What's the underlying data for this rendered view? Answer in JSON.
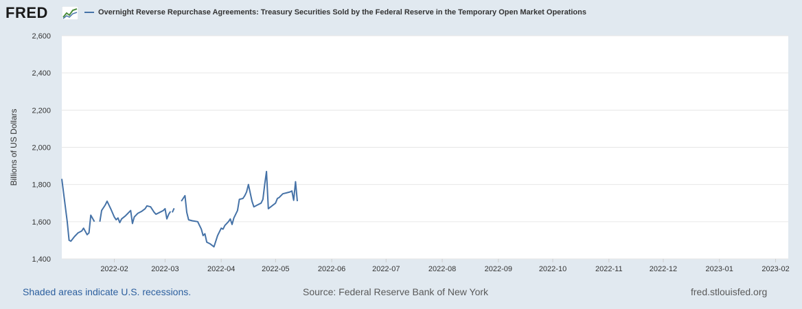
{
  "header": {
    "logo_text": "FRED",
    "logo_icon": "line-chart-icon",
    "series_title": "Overnight Reverse Repurchase Agreements: Treasury Securities Sold by the Federal Reserve in the Temporary Open Market Operations"
  },
  "footer": {
    "recession_note": "Shaded areas indicate U.S. recessions.",
    "source": "Source: Federal Reserve Bank of New York",
    "site": "fred.stlouisfed.org"
  },
  "colors": {
    "series": "#4572a7",
    "background": "#e1e9f0",
    "plot": "#ffffff",
    "grid": "#e6e6e6",
    "link": "#2c5f9e"
  },
  "chart_data": {
    "type": "line",
    "ylabel": "Billions of US Dollars",
    "ylim": [
      1400,
      2600
    ],
    "yticks": [
      1400,
      1600,
      1800,
      2000,
      2200,
      2400,
      2600
    ],
    "ytick_labels": [
      "1,400",
      "1,600",
      "1,800",
      "2,000",
      "2,200",
      "2,400",
      "2,600"
    ],
    "xlim": [
      "2022-01-03",
      "2023-02-08"
    ],
    "xticks": [
      "2022-02-01",
      "2022-03-01",
      "2022-04-01",
      "2022-05-01",
      "2022-06-01",
      "2022-07-01",
      "2022-08-01",
      "2022-09-01",
      "2022-10-01",
      "2022-11-01",
      "2022-12-01",
      "2023-01-01",
      "2023-02-01"
    ],
    "xtick_labels": [
      "2022-02",
      "2022-03",
      "2022-04",
      "2022-05",
      "2022-06",
      "2022-07",
      "2022-08",
      "2022-09",
      "2022-10",
      "2022-11",
      "2022-12",
      "2023-01",
      "2023-02"
    ],
    "grid": "horizontal",
    "series": [
      {
        "segments": [
          [
            [
              "2022-01-03",
              1830
            ],
            [
              "2022-01-06",
              1600
            ],
            [
              "2022-01-07",
              1500
            ],
            [
              "2022-01-08",
              1495
            ],
            [
              "2022-01-10",
              1520
            ],
            [
              "2022-01-12",
              1540
            ],
            [
              "2022-01-14",
              1550
            ],
            [
              "2022-01-15",
              1565
            ],
            [
              "2022-01-17",
              1530
            ],
            [
              "2022-01-18",
              1540
            ],
            [
              "2022-01-19",
              1635
            ],
            [
              "2022-01-21",
              1600
            ]
          ],
          [
            [
              "2022-01-24",
              1600
            ],
            [
              "2022-01-25",
              1660
            ],
            [
              "2022-01-27",
              1690
            ],
            [
              "2022-01-28",
              1710
            ],
            [
              "2022-01-30",
              1670
            ],
            [
              "2022-02-01",
              1625
            ],
            [
              "2022-02-02",
              1610
            ],
            [
              "2022-02-03",
              1620
            ],
            [
              "2022-02-04",
              1595
            ],
            [
              "2022-02-05",
              1615
            ],
            [
              "2022-02-07",
              1630
            ],
            [
              "2022-02-08",
              1640
            ],
            [
              "2022-02-09",
              1650
            ],
            [
              "2022-02-10",
              1660
            ],
            [
              "2022-02-11",
              1590
            ],
            [
              "2022-02-12",
              1625
            ],
            [
              "2022-02-14",
              1645
            ],
            [
              "2022-02-16",
              1655
            ],
            [
              "2022-02-18",
              1670
            ],
            [
              "2022-02-19",
              1685
            ],
            [
              "2022-02-21",
              1680
            ],
            [
              "2022-02-23",
              1650
            ],
            [
              "2022-02-24",
              1640
            ],
            [
              "2022-02-26",
              1650
            ],
            [
              "2022-02-28",
              1660
            ],
            [
              "2022-03-01",
              1670
            ],
            [
              "2022-03-02",
              1615
            ],
            [
              "2022-03-03",
              1640
            ],
            [
              "2022-03-04",
              1655
            ]
          ],
          [
            [
              "2022-03-05",
              1650
            ],
            [
              "2022-03-06",
              1672
            ]
          ],
          [
            [
              "2022-03-10",
              1710
            ],
            [
              "2022-03-12",
              1740
            ],
            [
              "2022-03-13",
              1650
            ],
            [
              "2022-03-14",
              1610
            ],
            [
              "2022-03-16",
              1605
            ],
            [
              "2022-03-19",
              1600
            ],
            [
              "2022-03-21",
              1560
            ],
            [
              "2022-03-22",
              1525
            ],
            [
              "2022-03-23",
              1535
            ],
            [
              "2022-03-24",
              1490
            ],
            [
              "2022-03-26",
              1480
            ],
            [
              "2022-03-28",
              1465
            ],
            [
              "2022-03-30",
              1525
            ],
            [
              "2022-04-01",
              1565
            ],
            [
              "2022-04-02",
              1560
            ],
            [
              "2022-04-03",
              1580
            ],
            [
              "2022-04-05",
              1600
            ],
            [
              "2022-04-06",
              1615
            ],
            [
              "2022-04-07",
              1585
            ],
            [
              "2022-04-08",
              1620
            ],
            [
              "2022-04-10",
              1660
            ],
            [
              "2022-04-11",
              1720
            ],
            [
              "2022-04-13",
              1725
            ],
            [
              "2022-04-14",
              1740
            ],
            [
              "2022-04-15",
              1760
            ],
            [
              "2022-04-16",
              1800
            ],
            [
              "2022-04-18",
              1710
            ],
            [
              "2022-04-19",
              1680
            ],
            [
              "2022-04-21",
              1690
            ],
            [
              "2022-04-23",
              1700
            ],
            [
              "2022-04-24",
              1720
            ],
            [
              "2022-04-25",
              1800
            ],
            [
              "2022-04-26",
              1870
            ],
            [
              "2022-04-27",
              1670
            ],
            [
              "2022-04-29",
              1685
            ],
            [
              "2022-05-01",
              1700
            ],
            [
              "2022-05-02",
              1725
            ],
            [
              "2022-05-03",
              1730
            ],
            [
              "2022-05-04",
              1740
            ],
            [
              "2022-05-05",
              1750
            ],
            [
              "2022-05-07",
              1755
            ],
            [
              "2022-05-09",
              1760
            ],
            [
              "2022-05-10",
              1765
            ],
            [
              "2022-05-11",
              1715
            ],
            [
              "2022-05-12",
              1815
            ],
            [
              "2022-05-13",
              1710
            ]
          ]
        ]
      }
    ]
  }
}
